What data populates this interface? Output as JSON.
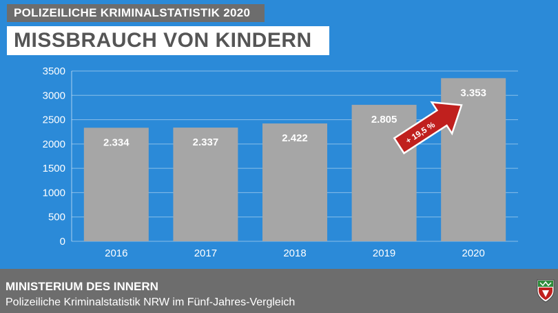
{
  "header": {
    "kicker": "POLIZEILICHE KRIMINALSTATISTIK 2020",
    "title": "MISSBRAUCH VON KINDERN"
  },
  "footer": {
    "org": "MINISTERIUM DES INNERN",
    "subtitle": "Polizeiliche Kriminalstatistik NRW im Fünf-Jahres-Vergleich"
  },
  "colors": {
    "background": "#2b8ad8",
    "bar": "#a6a6a6",
    "footer": "#6d6d6d",
    "arrow": "#c0201e"
  },
  "chart_data": {
    "type": "bar",
    "categories": [
      "2016",
      "2017",
      "2018",
      "2019",
      "2020"
    ],
    "values": [
      2334,
      2337,
      2422,
      2805,
      3353
    ],
    "data_labels": [
      "2.334",
      "2.337",
      "2.422",
      "2.805",
      "3.353"
    ],
    "ylim": [
      0,
      3500
    ],
    "yticks": [
      0,
      500,
      1000,
      1500,
      2000,
      2500,
      3000,
      3500
    ],
    "grid": true,
    "annotation": {
      "text": "+ 19,5 %",
      "icon": "arrow-up-right-icon"
    }
  }
}
